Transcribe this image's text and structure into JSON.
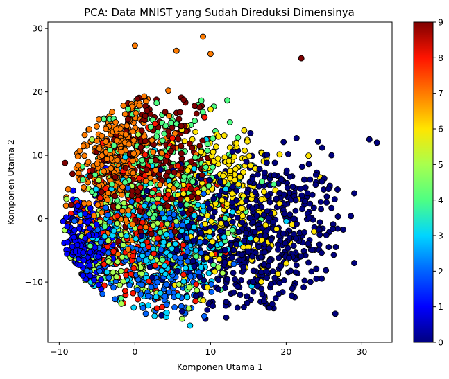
{
  "chart_data": {
    "type": "scatter",
    "title": "PCA: Data MNIST yang Sudah Direduksi Dimensinya",
    "xlabel": "Komponen Utama 1",
    "ylabel": "Komponen Utama 2",
    "xlim": [
      -11.5,
      34
    ],
    "ylim": [
      -19.5,
      31
    ],
    "x_ticks": [
      -10,
      0,
      10,
      20,
      30
    ],
    "y_ticks": [
      -10,
      0,
      10,
      20,
      30
    ],
    "x_tick_labels": [
      "−10",
      "0",
      "10",
      "20",
      "30"
    ],
    "y_tick_labels": [
      "−10",
      "0",
      "10",
      "20",
      "30"
    ],
    "grid": false,
    "colormap": "jet",
    "marker_edge_color": "#000000",
    "colorbar": {
      "range": [
        0,
        9
      ],
      "ticks": [
        0,
        1,
        2,
        3,
        4,
        5,
        6,
        7,
        8,
        9
      ],
      "tick_labels": [
        "0",
        "1",
        "2",
        "3",
        "4",
        "5",
        "6",
        "7",
        "8",
        "9"
      ],
      "colors": [
        "#00007f",
        "#0000ff",
        "#0063ff",
        "#00d5ff",
        "#4eff83",
        "#a8ff4e",
        "#ffe500",
        "#ff7b00",
        "#ff1400",
        "#7f0000"
      ]
    },
    "clusters": [
      {
        "label": 0,
        "center": [
          16,
          -3
        ],
        "spread": [
          6,
          6.5
        ],
        "count": 650
      },
      {
        "label": 1,
        "center": [
          -6.5,
          -4
        ],
        "spread": [
          1.6,
          3.5
        ],
        "count": 220
      },
      {
        "label": 2,
        "center": [
          2,
          -6
        ],
        "spread": [
          5,
          5
        ],
        "count": 260
      },
      {
        "label": 3,
        "center": [
          4,
          -3
        ],
        "spread": [
          5,
          6
        ],
        "count": 260
      },
      {
        "label": 4,
        "center": [
          4,
          6
        ],
        "spread": [
          5,
          7
        ],
        "count": 260
      },
      {
        "label": 5,
        "center": [
          0,
          -4
        ],
        "spread": [
          5,
          6
        ],
        "count": 230
      },
      {
        "label": 6,
        "center": [
          12,
          3
        ],
        "spread": [
          4.5,
          6
        ],
        "count": 260
      },
      {
        "label": 7,
        "center": [
          -2.5,
          9
        ],
        "spread": [
          3.5,
          6
        ],
        "count": 360
      },
      {
        "label": 8,
        "center": [
          1,
          -1
        ],
        "spread": [
          4.5,
          6
        ],
        "count": 230
      },
      {
        "label": 9,
        "center": [
          2,
          8
        ],
        "spread": [
          4.5,
          6
        ],
        "count": 260
      }
    ],
    "outliers": [
      {
        "label": 7,
        "x": 9,
        "y": 28.7
      },
      {
        "label": 7,
        "x": 5.5,
        "y": 26.5
      },
      {
        "label": 7,
        "x": 0,
        "y": 27.3
      },
      {
        "label": 9,
        "x": 22,
        "y": 25.3
      },
      {
        "label": 7,
        "x": 10,
        "y": 26
      },
      {
        "label": 0,
        "x": 32,
        "y": 12
      },
      {
        "label": 0,
        "x": 31,
        "y": 12.5
      },
      {
        "label": 0,
        "x": 29,
        "y": 4
      },
      {
        "label": 0,
        "x": 26.5,
        "y": -15
      },
      {
        "label": 0,
        "x": 29,
        "y": -7
      },
      {
        "label": 0,
        "x": 26,
        "y": 10
      }
    ]
  }
}
